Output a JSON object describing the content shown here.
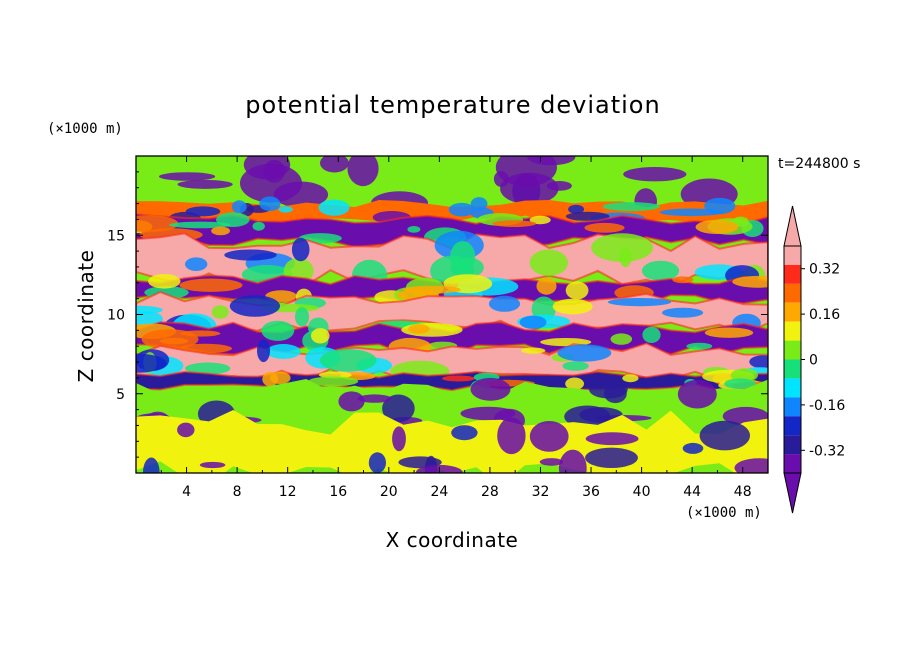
{
  "chart_data": {
    "type": "heatmap",
    "title": "potential temperature deviation",
    "xlabel": "X coordinate",
    "ylabel": "Z coordinate",
    "x_unit": "(×1000 m)",
    "y_unit": "(×1000 m)",
    "time_label": "t=244800 s",
    "xlim": [
      0,
      50
    ],
    "ylim": [
      0,
      20
    ],
    "x_ticks": [
      "4",
      "8",
      "12",
      "16",
      "20",
      "24",
      "28",
      "32",
      "36",
      "40",
      "44",
      "48"
    ],
    "x_tick_values": [
      4,
      8,
      12,
      16,
      20,
      24,
      28,
      32,
      36,
      40,
      44,
      48
    ],
    "y_ticks": [
      "5",
      "10",
      "15"
    ],
    "y_tick_values": [
      5,
      10,
      15
    ],
    "colorbar": {
      "labels": [
        "0.32",
        "0.16",
        "0",
        "-0.16",
        "-0.32"
      ],
      "label_values": [
        0.32,
        0.16,
        0,
        -0.16,
        -0.32
      ],
      "levels": [
        -0.4,
        -0.32,
        -0.24,
        -0.16,
        -0.08,
        0,
        0.08,
        0.16,
        0.24,
        0.32,
        0.4
      ],
      "colors": [
        "#6a0dad",
        "#2a1b9a",
        "#1326c6",
        "#0f86ff",
        "#00e5ff",
        "#17e07a",
        "#79ec17",
        "#f2f20f",
        "#ffa800",
        "#ff6a00",
        "#ff2a1a",
        "#f7a9a9"
      ],
      "under_color": "#6a0dad",
      "over_color": "#f7a9a9"
    },
    "bands": [
      {
        "z_bottom": 17.0,
        "z_top": 20.0,
        "value": 0.02
      },
      {
        "z_bottom": 16.0,
        "z_top": 17.0,
        "value": 0.3
      },
      {
        "z_bottom": 14.6,
        "z_top": 16.0,
        "value": -0.45
      },
      {
        "z_bottom": 12.2,
        "z_top": 14.6,
        "value": 0.45
      },
      {
        "z_bottom": 11.0,
        "z_top": 12.2,
        "value": -0.45
      },
      {
        "z_bottom": 9.2,
        "z_top": 11.0,
        "value": 0.45
      },
      {
        "z_bottom": 7.8,
        "z_top": 9.2,
        "value": -0.45
      },
      {
        "z_bottom": 6.2,
        "z_top": 7.8,
        "value": 0.45
      },
      {
        "z_bottom": 5.4,
        "z_top": 6.2,
        "value": -0.4
      },
      {
        "z_bottom": 3.2,
        "z_top": 5.4,
        "value": 0.03
      },
      {
        "z_bottom": 0.0,
        "z_top": 3.2,
        "value": 0.1
      }
    ]
  }
}
